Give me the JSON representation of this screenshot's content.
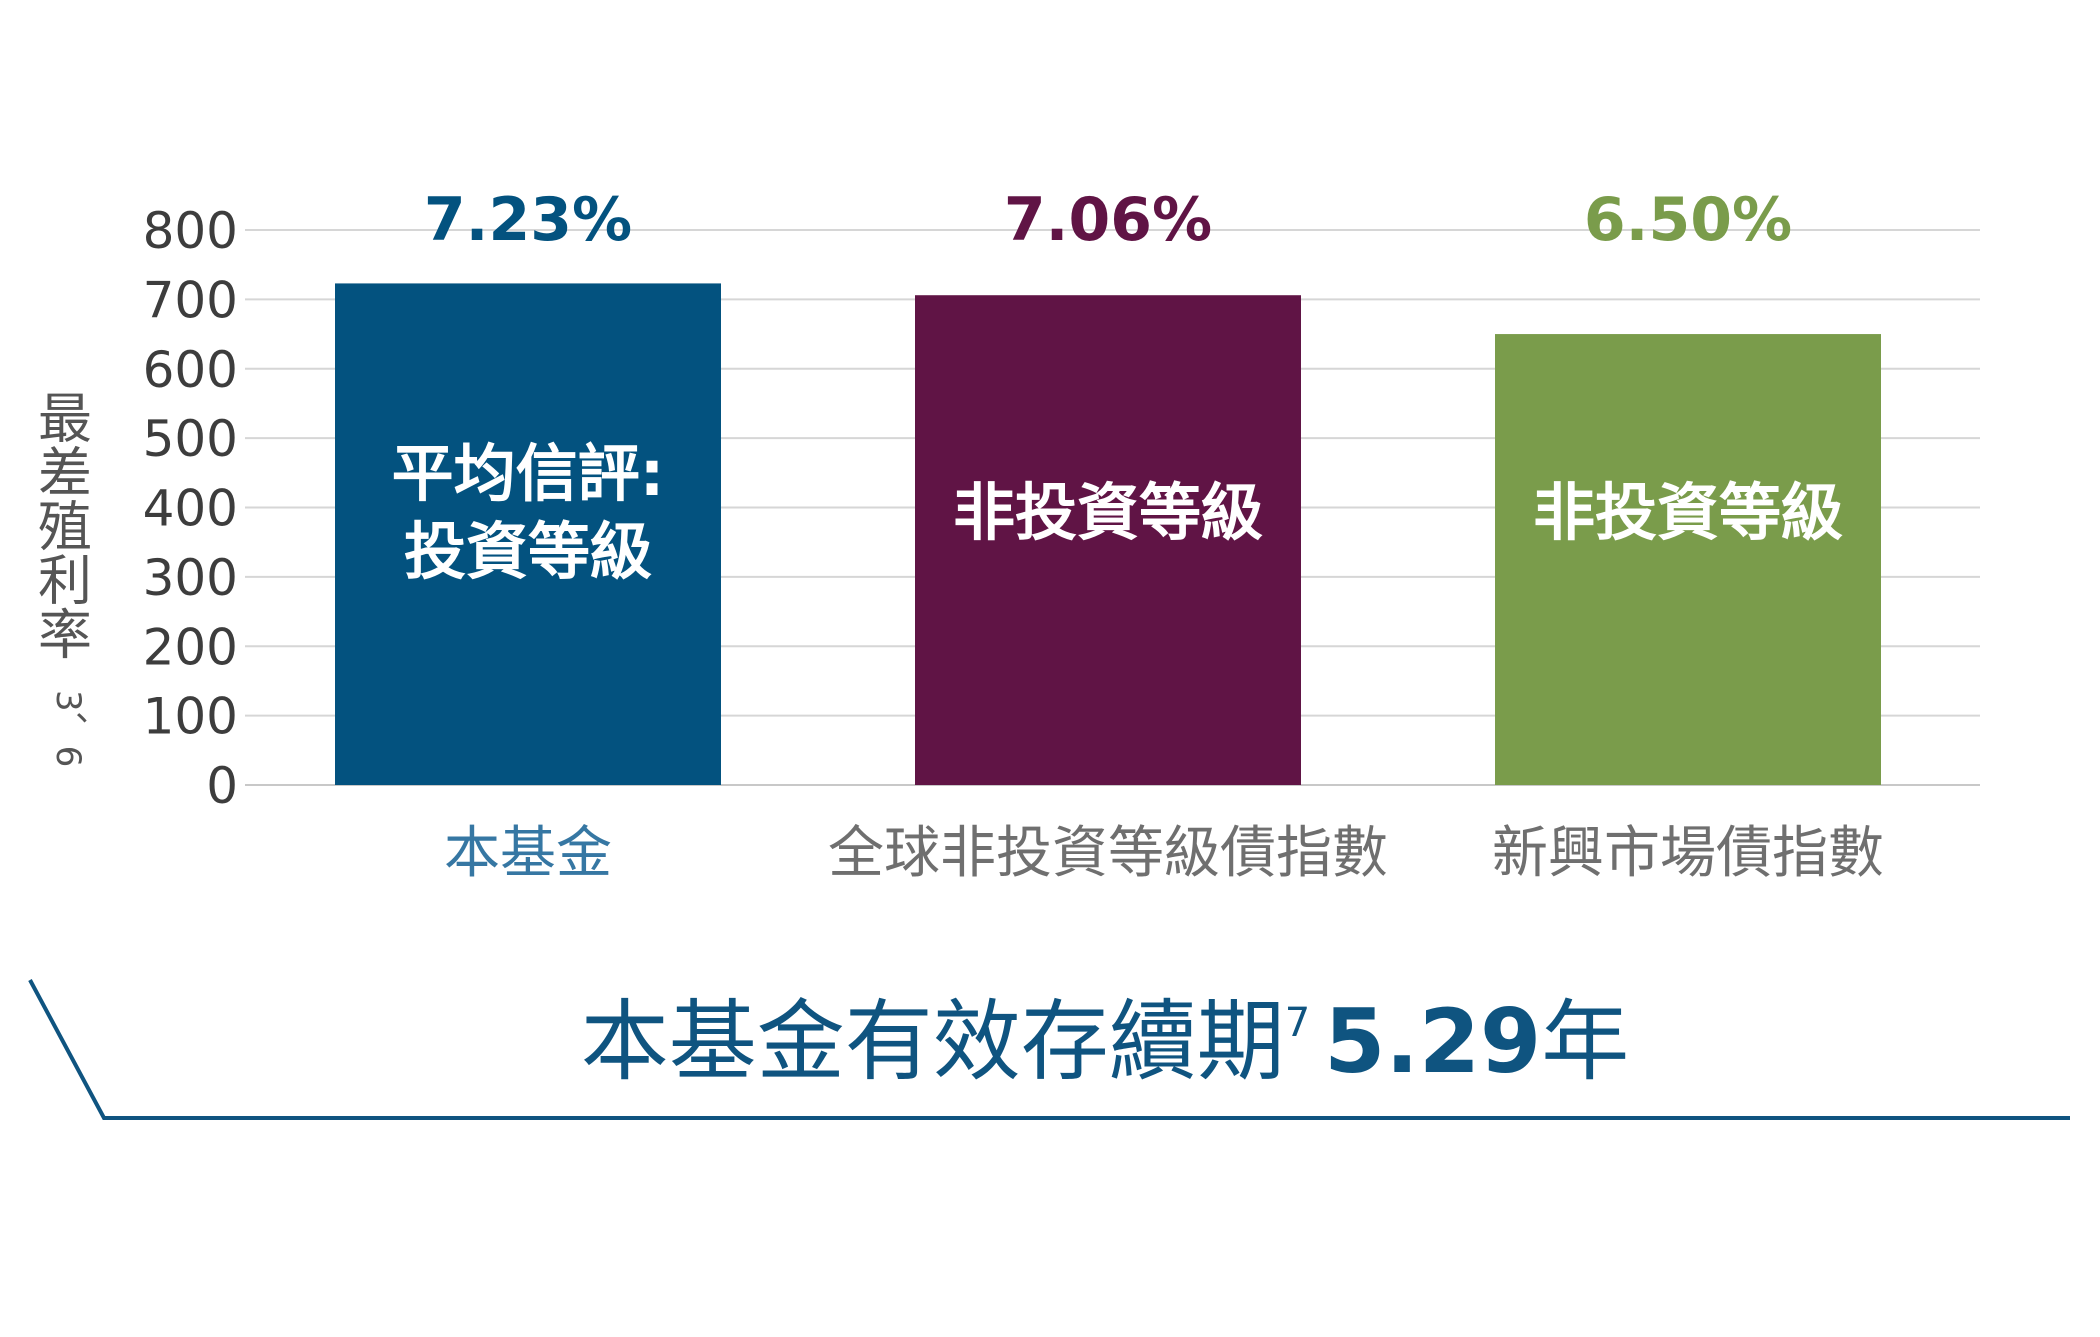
{
  "chart_data": {
    "type": "bar",
    "ylabel": "最差殖利率",
    "ylabel_sup": "3、6",
    "ylim": [
      0,
      800
    ],
    "yticks": [
      "0",
      "100",
      "200",
      "300",
      "400",
      "500",
      "600",
      "700",
      "800"
    ],
    "grid": true,
    "categories": [
      "本基金",
      "全球非投資等級債指數",
      "新興市場債指數"
    ],
    "values": [
      723,
      706,
      650
    ],
    "value_labels": [
      "7.23%",
      "7.06%",
      "6.50%"
    ],
    "bar_labels": [
      [
        "平均信評:",
        "投資等級"
      ],
      [
        "非投資等級"
      ],
      [
        "非投資等級"
      ]
    ],
    "colors": [
      "#03527f",
      "#601445",
      "#7a9c4b"
    ],
    "category_label_colors": [
      "#3677a3",
      "#6f6f6f",
      "#6f6f6f"
    ]
  },
  "footer": {
    "text": "本基金有效存續期",
    "sup": "7",
    "number": "5.29",
    "unit": "年"
  }
}
